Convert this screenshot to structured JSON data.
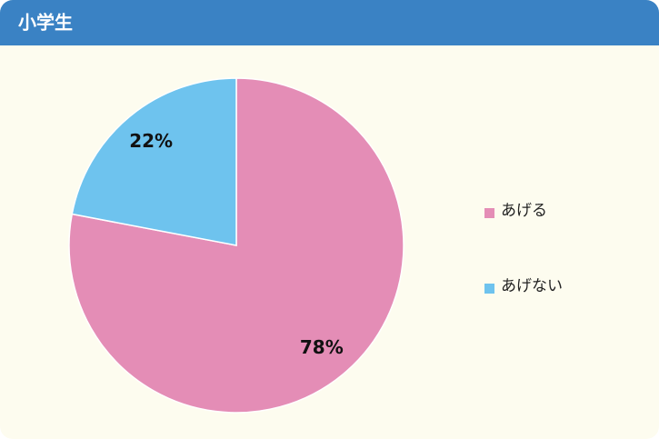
{
  "chart_data": {
    "type": "pie",
    "title": "小学生",
    "categories": [
      "あげる",
      "あげない"
    ],
    "values": [
      78,
      22
    ],
    "value_labels": [
      "78%",
      "22%"
    ],
    "colors": [
      "#e48db6",
      "#6ec3ee"
    ],
    "legend": "right"
  }
}
